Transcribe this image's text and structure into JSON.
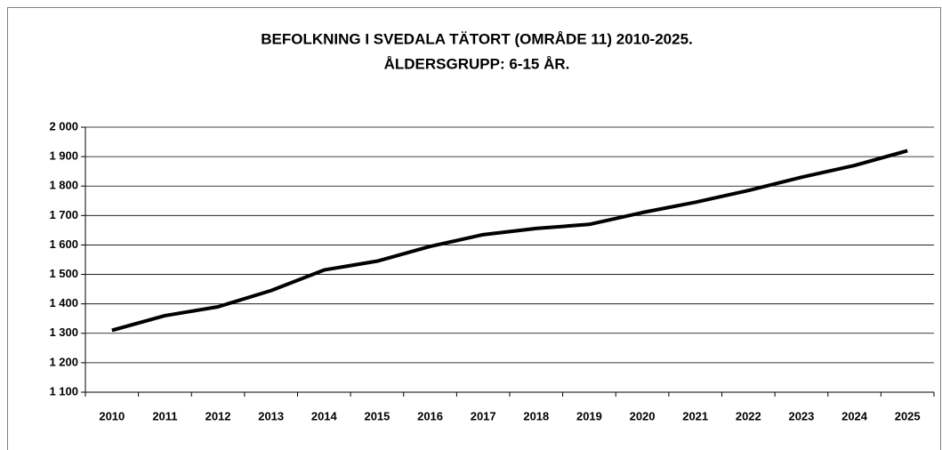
{
  "chart_data": {
    "type": "line",
    "title": "BEFOLKNING I SVEDALA TÄTORT (OMRÅDE 11) 2010-2025.",
    "subtitle": "ÅLDERSGRUPP: 6-15 ÅR.",
    "categories": [
      "2010",
      "2011",
      "2012",
      "2013",
      "2014",
      "2015",
      "2016",
      "2017",
      "2018",
      "2019",
      "2020",
      "2021",
      "2022",
      "2023",
      "2024",
      "2025"
    ],
    "series": [
      {
        "name": "Befolkning 6-15 år",
        "color": "#000000",
        "values": [
          1310,
          1360,
          1390,
          1445,
          1515,
          1545,
          1595,
          1635,
          1656,
          1670,
          1710,
          1745,
          1785,
          1830,
          1870,
          1920
        ]
      }
    ],
    "ylim": [
      1100,
      2000
    ],
    "yticks": [
      {
        "value": 1100,
        "label": "1 100"
      },
      {
        "value": 1200,
        "label": "1 200"
      },
      {
        "value": 1300,
        "label": "1 300"
      },
      {
        "value": 1400,
        "label": "1 400"
      },
      {
        "value": 1500,
        "label": "1 500"
      },
      {
        "value": 1600,
        "label": "1 600"
      },
      {
        "value": 1700,
        "label": "1 700"
      },
      {
        "value": 1800,
        "label": "1 800"
      },
      {
        "value": 1900,
        "label": "1 900"
      },
      {
        "value": 2000,
        "label": "2 000"
      }
    ],
    "grid": true
  }
}
